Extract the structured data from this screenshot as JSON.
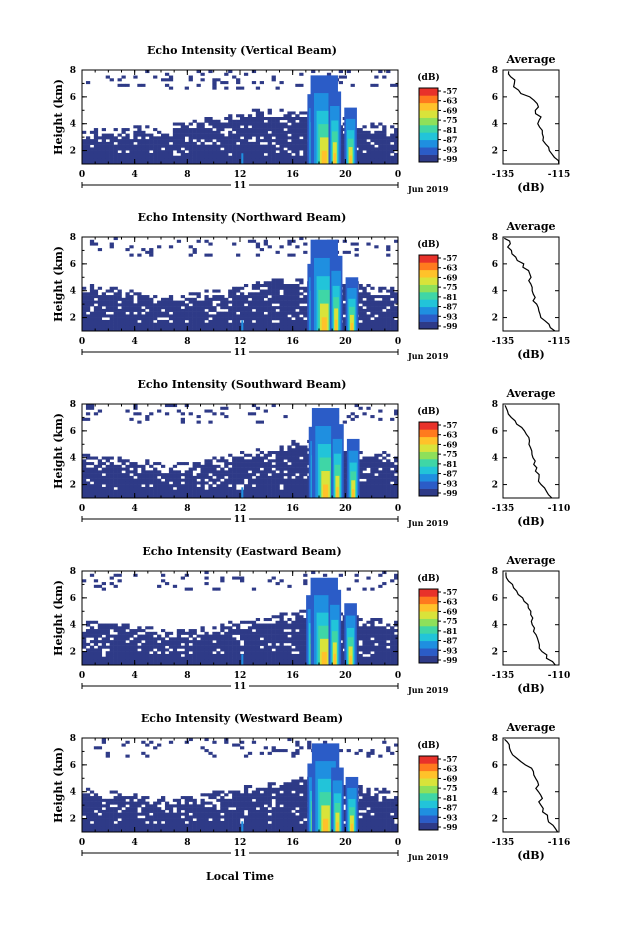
{
  "colors": {
    "background": "#ffffff",
    "axes": "#000000",
    "colormap": [
      "#2e3a87",
      "#2b5cc7",
      "#1f8fe0",
      "#22c4d9",
      "#3fd6a6",
      "#8ee05a",
      "#d9e33a",
      "#ffc22a",
      "#ff7a1e",
      "#e8322a"
    ]
  },
  "shared": {
    "ylabel": "Height (km)",
    "xlabel": "Local Time",
    "date_center": "11",
    "date_label": "Jun 2019",
    "unit": "(dB)",
    "avg_title": "Average",
    "avg_xlabel": "(dB)",
    "colorbar_ticks": [
      "-57",
      "-63",
      "-69",
      "-75",
      "-81",
      "-87",
      "-93",
      "-99"
    ]
  },
  "chart_data": [
    {
      "type": "heatmap",
      "title": "Echo Intensity (Vertical Beam)",
      "xlim": [
        0,
        24
      ],
      "xticks": [
        "0",
        "4",
        "8",
        "12",
        "16",
        "20",
        "0"
      ],
      "ylim": [
        1,
        8
      ],
      "yticks": [
        "2",
        "4",
        "6",
        "8"
      ],
      "color_range": [
        -99,
        -57
      ],
      "cloud_top_km": [
        2.9,
        3.0,
        3.1,
        3.1,
        3.2,
        3.1,
        3.3,
        3.4,
        3.6,
        3.8,
        4.0,
        4.2,
        4.4,
        4.6,
        4.6,
        4.5,
        4.4,
        4.2,
        4.0,
        3.8,
        3.6,
        3.5,
        3.4,
        3.3
      ],
      "columns": [
        {
          "t": 17.6,
          "top_km": 6.2
        },
        {
          "t": 18.4,
          "top_km": 7.6
        },
        {
          "t": 19.2,
          "top_km": 6.4
        },
        {
          "t": 20.4,
          "top_km": 5.2
        }
      ],
      "average": {
        "xlim": [
          -135,
          -115
        ],
        "xticks": [
          "-135",
          "-115"
        ],
        "ylim": [
          1,
          8
        ],
        "yticks": [
          "2",
          "4",
          "6",
          "8"
        ],
        "height_km": [
          1.0,
          1.5,
          2.0,
          2.5,
          3.0,
          3.5,
          4.0,
          4.5,
          5.0,
          5.5,
          6.0,
          6.5,
          7.0,
          7.5,
          7.9
        ],
        "db": [
          -115,
          -117,
          -119,
          -120,
          -121,
          -121,
          -122,
          -122,
          -123,
          -123,
          -126,
          -130,
          -131,
          -132,
          -133
        ]
      }
    },
    {
      "type": "heatmap",
      "title": "Echo Intensity (Northward Beam)",
      "xlim": [
        0,
        24
      ],
      "xticks": [
        "0",
        "4",
        "8",
        "12",
        "16",
        "20",
        "0"
      ],
      "ylim": [
        1,
        8
      ],
      "yticks": [
        "2",
        "4",
        "6",
        "8"
      ],
      "color_range": [
        -99,
        -57
      ],
      "cloud_top_km": [
        3.8,
        3.7,
        3.6,
        3.4,
        3.3,
        3.1,
        3.0,
        3.1,
        3.2,
        3.4,
        3.5,
        3.7,
        3.9,
        4.1,
        4.3,
        4.4,
        4.5,
        4.6,
        4.5,
        4.3,
        4.1,
        3.9,
        3.7,
        3.6
      ],
      "columns": [
        {
          "t": 17.6,
          "top_km": 6.0
        },
        {
          "t": 18.4,
          "top_km": 7.8
        },
        {
          "t": 19.3,
          "top_km": 6.6
        },
        {
          "t": 20.5,
          "top_km": 5.0
        }
      ],
      "average": {
        "xlim": [
          -135,
          -115
        ],
        "xticks": [
          "-135",
          "-115"
        ],
        "ylim": [
          1,
          8
        ],
        "yticks": [
          "2",
          "4",
          "6",
          "8"
        ],
        "height_km": [
          1.0,
          1.5,
          2.0,
          2.5,
          3.0,
          3.5,
          4.0,
          4.5,
          5.0,
          5.5,
          6.0,
          6.5,
          7.0,
          7.5,
          7.9
        ],
        "db": [
          -117,
          -119,
          -121,
          -122,
          -123,
          -124,
          -124,
          -125,
          -125,
          -126,
          -128,
          -131,
          -132,
          -133,
          -134
        ]
      }
    },
    {
      "type": "heatmap",
      "title": "Echo Intensity (Southward Beam)",
      "xlim": [
        0,
        24
      ],
      "xticks": [
        "0",
        "4",
        "8",
        "12",
        "16",
        "20",
        "0"
      ],
      "ylim": [
        1,
        8
      ],
      "yticks": [
        "2",
        "4",
        "6",
        "8"
      ],
      "color_range": [
        -99,
        -57
      ],
      "cloud_top_km": [
        3.6,
        3.5,
        3.4,
        3.3,
        3.2,
        3.0,
        2.9,
        3.0,
        3.1,
        3.3,
        3.5,
        3.7,
        3.9,
        4.1,
        4.3,
        4.5,
        4.7,
        4.8,
        4.6,
        4.4,
        4.2,
        4.0,
        3.8,
        3.6
      ],
      "columns": [
        {
          "t": 17.7,
          "top_km": 6.3
        },
        {
          "t": 18.5,
          "top_km": 7.7
        },
        {
          "t": 19.4,
          "top_km": 6.5
        },
        {
          "t": 20.6,
          "top_km": 5.4
        }
      ],
      "average": {
        "xlim": [
          -135,
          -110
        ],
        "xticks": [
          "-135",
          "-110"
        ],
        "ylim": [
          1,
          8
        ],
        "yticks": [
          "2",
          "4",
          "6",
          "8"
        ],
        "height_km": [
          1.0,
          1.5,
          2.0,
          2.5,
          3.0,
          3.5,
          4.0,
          4.5,
          5.0,
          5.5,
          6.0,
          6.5,
          7.0,
          7.5,
          7.9
        ],
        "db": [
          -113,
          -116,
          -118,
          -119,
          -120,
          -121,
          -122,
          -122,
          -123,
          -124,
          -126,
          -129,
          -131,
          -133,
          -134
        ]
      }
    },
    {
      "type": "heatmap",
      "title": "Echo Intensity (Eastward Beam)",
      "xlim": [
        0,
        24
      ],
      "xticks": [
        "0",
        "4",
        "8",
        "12",
        "16",
        "20",
        "0"
      ],
      "ylim": [
        1,
        8
      ],
      "yticks": [
        "2",
        "4",
        "6",
        "8"
      ],
      "color_range": [
        -99,
        -57
      ],
      "cloud_top_km": [
        3.7,
        3.6,
        3.5,
        3.4,
        3.3,
        3.2,
        3.1,
        3.1,
        3.2,
        3.3,
        3.5,
        3.6,
        3.8,
        4.0,
        4.2,
        4.4,
        4.5,
        4.6,
        4.5,
        4.3,
        4.1,
        3.9,
        3.8,
        3.6
      ],
      "columns": [
        {
          "t": 17.5,
          "top_km": 6.2
        },
        {
          "t": 18.4,
          "top_km": 7.5
        },
        {
          "t": 19.2,
          "top_km": 6.6
        },
        {
          "t": 20.4,
          "top_km": 5.6
        }
      ],
      "average": {
        "xlim": [
          -135,
          -110
        ],
        "xticks": [
          "-135",
          "-110"
        ],
        "ylim": [
          1,
          8
        ],
        "yticks": [
          "2",
          "4",
          "6",
          "8"
        ],
        "height_km": [
          1.0,
          1.5,
          2.0,
          2.5,
          3.0,
          3.5,
          4.0,
          4.5,
          5.0,
          5.5,
          6.0,
          6.5,
          7.0,
          7.5,
          7.9
        ],
        "db": [
          -112,
          -115,
          -117,
          -119,
          -120,
          -121,
          -122,
          -122,
          -123,
          -124,
          -126,
          -129,
          -131,
          -133,
          -134
        ]
      }
    },
    {
      "type": "heatmap",
      "title": "Echo Intensity (Westward Beam)",
      "xlim": [
        0,
        24
      ],
      "xticks": [
        "0",
        "4",
        "8",
        "12",
        "16",
        "20",
        "0"
      ],
      "ylim": [
        1,
        8
      ],
      "yticks": [
        "2",
        "4",
        "6",
        "8"
      ],
      "color_range": [
        -99,
        -57
      ],
      "cloud_top_km": [
        3.6,
        3.5,
        3.4,
        3.3,
        3.2,
        3.1,
        3.0,
        3.0,
        3.1,
        3.3,
        3.4,
        3.6,
        3.8,
        4.0,
        4.2,
        4.4,
        4.5,
        4.6,
        4.4,
        4.2,
        4.0,
        3.8,
        3.7,
        3.5
      ],
      "columns": [
        {
          "t": 17.6,
          "top_km": 6.1
        },
        {
          "t": 18.5,
          "top_km": 7.6
        },
        {
          "t": 19.4,
          "top_km": 5.8
        },
        {
          "t": 20.5,
          "top_km": 5.1
        }
      ],
      "average": {
        "xlim": [
          -135,
          -116
        ],
        "xticks": [
          "-135",
          "-116"
        ],
        "ylim": [
          1,
          8
        ],
        "yticks": [
          "2",
          "4",
          "6",
          "8"
        ],
        "height_km": [
          1.0,
          1.5,
          2.0,
          2.5,
          3.0,
          3.5,
          4.0,
          4.5,
          5.0,
          5.5,
          6.0,
          6.5,
          7.0,
          7.5,
          7.9
        ],
        "db": [
          -116,
          -118,
          -120,
          -121,
          -122,
          -122,
          -123,
          -123,
          -124,
          -125,
          -127,
          -130,
          -132,
          -133,
          -134
        ]
      }
    }
  ]
}
